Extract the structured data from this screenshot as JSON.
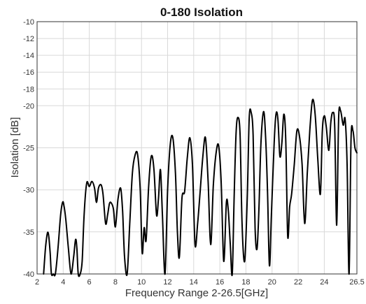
{
  "chart_data": {
    "type": "line",
    "title": "0-180 Isolation",
    "xlabel": "Frequency Range 2-26.5[GHz]",
    "ylabel": "Isolation [dB]",
    "xlim": [
      2,
      26.5
    ],
    "ylim": [
      -40,
      -10
    ],
    "x_ticks": [
      2,
      4,
      6,
      8,
      10,
      12,
      14,
      16,
      18,
      20,
      22,
      24,
      26.5
    ],
    "x_tick_labels": [
      "2",
      "4",
      "6",
      "8",
      "10",
      "12",
      "14",
      "16",
      "18",
      "20",
      "22",
      "24",
      "26.5"
    ],
    "y_ticks": [
      -10,
      -12,
      -14,
      -16,
      -18,
      -20,
      -25,
      -30,
      -35,
      -40
    ],
    "y_tick_labels": [
      "-10",
      "-12",
      "-14",
      "-16",
      "-18",
      "-20",
      "-25",
      "-30",
      "-35",
      "-40"
    ],
    "grid": true,
    "series": [
      {
        "color": "#000000",
        "x": [
          2.5,
          2.65,
          2.8,
          2.9,
          3.0,
          3.1,
          3.25,
          3.4,
          3.6,
          3.8,
          3.95,
          4.05,
          4.2,
          4.4,
          4.6,
          4.8,
          4.95,
          5.05,
          5.15,
          5.3,
          5.45,
          5.6,
          5.8,
          6.0,
          6.2,
          6.4,
          6.55,
          6.7,
          6.9,
          7.05,
          7.25,
          7.4,
          7.55,
          7.7,
          7.85,
          8.0,
          8.2,
          8.4,
          8.55,
          8.7,
          8.9,
          9.1,
          9.3,
          9.5,
          9.7,
          9.9,
          10.05,
          10.2,
          10.35,
          10.55,
          10.75,
          10.95,
          11.15,
          11.3,
          11.45,
          11.6,
          11.8,
          12.0,
          12.2,
          12.4,
          12.6,
          12.75,
          12.9,
          13.1,
          13.3,
          13.5,
          13.7,
          13.9,
          14.1,
          14.3,
          14.5,
          14.7,
          14.9,
          15.1,
          15.3,
          15.5,
          15.7,
          15.9,
          16.1,
          16.3,
          16.5,
          16.65,
          16.8,
          16.95,
          17.1,
          17.25,
          17.4,
          17.55,
          17.7,
          17.9,
          18.1,
          18.25,
          18.4,
          18.55,
          18.7,
          18.85,
          19.0,
          19.15,
          19.35,
          19.5,
          19.65,
          19.8,
          19.95,
          20.15,
          20.3,
          20.45,
          20.6,
          20.75,
          20.9,
          21.05,
          21.2,
          21.35,
          21.5,
          21.7,
          21.9,
          22.1,
          22.3,
          22.5,
          22.7,
          22.9,
          23.1,
          23.3,
          23.5,
          23.7,
          23.85,
          24.0,
          24.15,
          24.35,
          24.5,
          24.65,
          24.8,
          24.95,
          25.1,
          25.25,
          25.45,
          25.6,
          25.75,
          25.9,
          26.05,
          26.2,
          26.35,
          26.5
        ],
        "y": [
          -40,
          -36.8,
          -35.1,
          -35.6,
          -37.5,
          -40,
          -40,
          -40,
          -37.0,
          -33.0,
          -31.5,
          -31.8,
          -33.5,
          -37.0,
          -40,
          -38.0,
          -35.9,
          -37.0,
          -40,
          -40,
          -38.5,
          -33.0,
          -29.2,
          -29.6,
          -29.0,
          -29.8,
          -31.5,
          -29.8,
          -29.4,
          -30.5,
          -34.0,
          -33.0,
          -31.6,
          -31.6,
          -32.3,
          -34.4,
          -31.1,
          -29.8,
          -32.5,
          -38.0,
          -40,
          -34.0,
          -28.0,
          -25.9,
          -25.8,
          -30.0,
          -37.5,
          -34.5,
          -36.0,
          -29.5,
          -26.0,
          -27.5,
          -33.0,
          -31.0,
          -27.6,
          -33.0,
          -40,
          -30.0,
          -24.6,
          -23.8,
          -28.0,
          -35.0,
          -38.0,
          -31.0,
          -30.2,
          -26.3,
          -23.8,
          -27.0,
          -36.5,
          -34.0,
          -30.0,
          -26.0,
          -23.8,
          -29.0,
          -36.5,
          -29.5,
          -25.8,
          -24.7,
          -29.0,
          -38.5,
          -31.5,
          -32.5,
          -36.5,
          -40,
          -30.5,
          -23.0,
          -21.4,
          -23.5,
          -34.0,
          -38.5,
          -31.0,
          -21.5,
          -20.8,
          -23.5,
          -34.5,
          -37.0,
          -32.0,
          -24.4,
          -20.7,
          -23.5,
          -30.0,
          -39.0,
          -33.0,
          -24.8,
          -21.0,
          -21.6,
          -26.0,
          -24.5,
          -21.0,
          -24.0,
          -35.5,
          -32.0,
          -30.5,
          -27.0,
          -23.0,
          -23.6,
          -27.0,
          -34.0,
          -28.0,
          -22.8,
          -19.3,
          -21.0,
          -26.2,
          -30.5,
          -23.0,
          -21.2,
          -22.5,
          -25.3,
          -22.0,
          -20.8,
          -22.5,
          -34.2,
          -21.5,
          -20.6,
          -22.3,
          -21.6,
          -27.0,
          -40,
          -24.0,
          -23.0,
          -25.0,
          -25.6
        ]
      }
    ]
  }
}
